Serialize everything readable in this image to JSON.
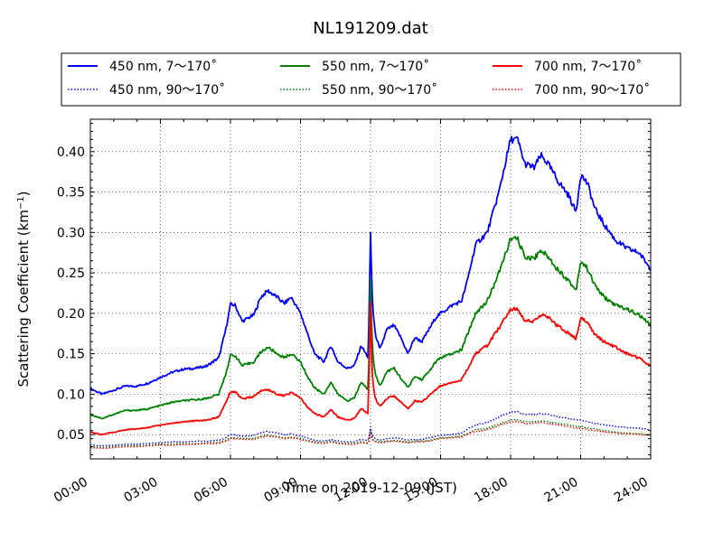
{
  "chart_data": {
    "type": "line",
    "title": "NL191209.dat",
    "xlabel": "Time on 2019-12-09 (JST)",
    "ylabel": "Scattering Coefficient (km",
    "ylabel_sup": "−1",
    "ylabel_close": ")",
    "xlim": [
      0,
      24
    ],
    "ylim": [
      0.02,
      0.44
    ],
    "x_ticks": [
      {
        "value": 0,
        "label": "00:00"
      },
      {
        "value": 3,
        "label": "03:00"
      },
      {
        "value": 6,
        "label": "06:00"
      },
      {
        "value": 9,
        "label": "09:00"
      },
      {
        "value": 12,
        "label": "12:00"
      },
      {
        "value": 15,
        "label": "15:00"
      },
      {
        "value": 18,
        "label": "18:00"
      },
      {
        "value": 21,
        "label": "21:00"
      },
      {
        "value": 24,
        "label": "24:00"
      }
    ],
    "y_ticks": [
      {
        "value": 0.05,
        "label": "0.05"
      },
      {
        "value": 0.1,
        "label": "0.10"
      },
      {
        "value": 0.15,
        "label": "0.15"
      },
      {
        "value": 0.2,
        "label": "0.20"
      },
      {
        "value": 0.25,
        "label": "0.25"
      },
      {
        "value": 0.3,
        "label": "0.30"
      },
      {
        "value": 0.35,
        "label": "0.35"
      },
      {
        "value": 0.4,
        "label": "0.40"
      }
    ],
    "grid": true,
    "legend_position": "top",
    "x_hours": [
      0,
      0.5,
      1,
      1.5,
      2,
      2.5,
      3,
      3.5,
      4,
      4.5,
      5,
      5.5,
      5.8,
      6,
      6.2,
      6.5,
      7,
      7.3,
      7.6,
      8,
      8.3,
      8.6,
      8.8,
      9,
      9.3,
      9.6,
      10,
      10.3,
      10.6,
      11,
      11.3,
      11.6,
      11.9,
      11.95,
      12,
      12.05,
      12.1,
      12.2,
      12.4,
      12.7,
      13,
      13.3,
      13.6,
      13.9,
      14.2,
      14.5,
      14.8,
      15,
      15.5,
      15.9,
      16.1,
      16.5,
      17,
      17.5,
      18,
      18.3,
      18.6,
      19,
      19.3,
      19.6,
      20,
      20.5,
      20.8,
      21,
      21.3,
      21.6,
      22,
      22.5,
      23,
      23.5,
      24
    ],
    "series": [
      {
        "name": "450 nm, 7～170˚",
        "color": "#0000ff",
        "style": "solid",
        "values": [
          0.107,
          0.1,
          0.105,
          0.11,
          0.11,
          0.114,
          0.121,
          0.127,
          0.131,
          0.132,
          0.135,
          0.145,
          0.18,
          0.211,
          0.21,
          0.19,
          0.198,
          0.22,
          0.228,
          0.22,
          0.212,
          0.22,
          0.21,
          0.2,
          0.175,
          0.15,
          0.14,
          0.16,
          0.14,
          0.132,
          0.135,
          0.16,
          0.145,
          0.22,
          0.3,
          0.24,
          0.205,
          0.175,
          0.155,
          0.18,
          0.185,
          0.17,
          0.15,
          0.17,
          0.165,
          0.18,
          0.195,
          0.2,
          0.21,
          0.215,
          0.235,
          0.285,
          0.3,
          0.35,
          0.415,
          0.415,
          0.385,
          0.38,
          0.395,
          0.385,
          0.365,
          0.345,
          0.325,
          0.372,
          0.36,
          0.33,
          0.31,
          0.29,
          0.28,
          0.275,
          0.255
        ]
      },
      {
        "name": "550 nm, 7～170˚",
        "color": "#008000",
        "style": "solid",
        "values": [
          0.075,
          0.07,
          0.075,
          0.08,
          0.08,
          0.082,
          0.086,
          0.09,
          0.092,
          0.093,
          0.095,
          0.1,
          0.125,
          0.148,
          0.148,
          0.135,
          0.14,
          0.152,
          0.158,
          0.15,
          0.145,
          0.15,
          0.145,
          0.14,
          0.122,
          0.108,
          0.1,
          0.115,
          0.1,
          0.092,
          0.095,
          0.115,
          0.105,
          0.17,
          0.245,
          0.18,
          0.15,
          0.125,
          0.11,
          0.128,
          0.132,
          0.12,
          0.108,
          0.122,
          0.118,
          0.128,
          0.14,
          0.145,
          0.15,
          0.155,
          0.17,
          0.2,
          0.215,
          0.25,
          0.292,
          0.292,
          0.27,
          0.268,
          0.278,
          0.27,
          0.255,
          0.24,
          0.228,
          0.265,
          0.255,
          0.235,
          0.22,
          0.21,
          0.205,
          0.198,
          0.185
        ]
      },
      {
        "name": "700 nm, 7～170˚",
        "color": "#ff0000",
        "style": "solid",
        "values": [
          0.053,
          0.05,
          0.053,
          0.056,
          0.057,
          0.059,
          0.062,
          0.064,
          0.066,
          0.067,
          0.068,
          0.072,
          0.09,
          0.103,
          0.103,
          0.094,
          0.097,
          0.104,
          0.106,
          0.1,
          0.098,
          0.102,
          0.099,
          0.095,
          0.084,
          0.076,
          0.072,
          0.081,
          0.072,
          0.068,
          0.07,
          0.082,
          0.076,
          0.15,
          0.215,
          0.14,
          0.115,
          0.095,
          0.085,
          0.095,
          0.098,
          0.09,
          0.082,
          0.092,
          0.09,
          0.098,
          0.106,
          0.11,
          0.115,
          0.118,
          0.128,
          0.15,
          0.16,
          0.182,
          0.205,
          0.205,
          0.192,
          0.19,
          0.198,
          0.195,
          0.185,
          0.175,
          0.168,
          0.195,
          0.188,
          0.175,
          0.165,
          0.158,
          0.15,
          0.145,
          0.135
        ]
      },
      {
        "name": "450 nm, 90～170˚",
        "color": "#0000ff",
        "style": "dotted",
        "values": [
          0.037,
          0.036,
          0.037,
          0.038,
          0.038,
          0.039,
          0.04,
          0.041,
          0.041,
          0.042,
          0.042,
          0.043,
          0.046,
          0.05,
          0.05,
          0.048,
          0.049,
          0.052,
          0.054,
          0.052,
          0.05,
          0.051,
          0.049,
          0.048,
          0.046,
          0.043,
          0.042,
          0.044,
          0.042,
          0.041,
          0.041,
          0.044,
          0.043,
          0.05,
          0.06,
          0.052,
          0.048,
          0.045,
          0.043,
          0.045,
          0.046,
          0.045,
          0.043,
          0.044,
          0.044,
          0.046,
          0.048,
          0.049,
          0.05,
          0.052,
          0.056,
          0.062,
          0.065,
          0.072,
          0.078,
          0.078,
          0.075,
          0.075,
          0.076,
          0.075,
          0.072,
          0.07,
          0.068,
          0.068,
          0.066,
          0.064,
          0.062,
          0.06,
          0.059,
          0.058,
          0.056
        ]
      },
      {
        "name": "550 nm, 90～170˚",
        "color": "#008000",
        "style": "dotted",
        "values": [
          0.035,
          0.034,
          0.035,
          0.036,
          0.036,
          0.037,
          0.038,
          0.038,
          0.039,
          0.039,
          0.04,
          0.04,
          0.043,
          0.046,
          0.046,
          0.045,
          0.045,
          0.048,
          0.049,
          0.048,
          0.046,
          0.047,
          0.046,
          0.045,
          0.043,
          0.041,
          0.04,
          0.042,
          0.04,
          0.039,
          0.039,
          0.041,
          0.04,
          0.046,
          0.054,
          0.048,
          0.044,
          0.042,
          0.041,
          0.042,
          0.043,
          0.042,
          0.041,
          0.042,
          0.042,
          0.043,
          0.045,
          0.046,
          0.047,
          0.048,
          0.051,
          0.056,
          0.058,
          0.063,
          0.068,
          0.068,
          0.066,
          0.066,
          0.067,
          0.066,
          0.064,
          0.062,
          0.06,
          0.06,
          0.058,
          0.057,
          0.055,
          0.053,
          0.052,
          0.051,
          0.05
        ]
      },
      {
        "name": "700 nm, 90～170˚",
        "color": "#ff0000",
        "style": "dotted",
        "values": [
          0.034,
          0.033,
          0.034,
          0.035,
          0.035,
          0.036,
          0.037,
          0.037,
          0.038,
          0.038,
          0.039,
          0.039,
          0.042,
          0.045,
          0.045,
          0.044,
          0.044,
          0.047,
          0.048,
          0.047,
          0.045,
          0.046,
          0.045,
          0.044,
          0.042,
          0.04,
          0.039,
          0.041,
          0.039,
          0.038,
          0.038,
          0.04,
          0.039,
          0.044,
          0.052,
          0.046,
          0.043,
          0.041,
          0.04,
          0.041,
          0.042,
          0.041,
          0.04,
          0.041,
          0.041,
          0.042,
          0.044,
          0.045,
          0.046,
          0.047,
          0.05,
          0.054,
          0.056,
          0.061,
          0.066,
          0.066,
          0.064,
          0.064,
          0.065,
          0.064,
          0.062,
          0.06,
          0.058,
          0.058,
          0.056,
          0.055,
          0.053,
          0.052,
          0.051,
          0.05,
          0.049
        ]
      }
    ]
  }
}
